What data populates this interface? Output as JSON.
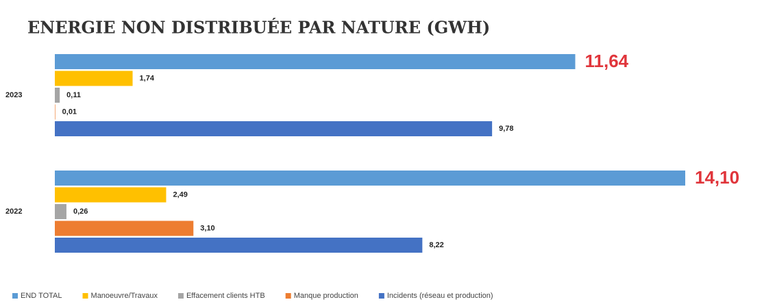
{
  "chart_data": {
    "type": "hbar",
    "title": "ENERGIE NON DISTRIBUÉE PAR NATURE (GWH)",
    "categories": [
      "2023",
      "2022"
    ],
    "series": [
      {
        "name": "END TOTAL",
        "color": "#5b9bd5",
        "label_color": "#e0353b",
        "values": [
          11.64,
          14.1
        ],
        "value_labels": [
          "11,64",
          "14,10"
        ]
      },
      {
        "name": "Manoeuvre/Travaux",
        "color": "#ffc000",
        "label_color": "#222222",
        "values": [
          1.74,
          2.49
        ],
        "value_labels": [
          "1,74",
          "2,49"
        ]
      },
      {
        "name": "Effacement clients HTB",
        "color": "#a5a5a5",
        "label_color": "#222222",
        "values": [
          0.11,
          0.26
        ],
        "value_labels": [
          "0,11",
          "0,26"
        ]
      },
      {
        "name": "Manque production",
        "color": "#ed7d31",
        "label_color": "#222222",
        "values": [
          0.01,
          3.1
        ],
        "value_labels": [
          "0,01",
          "3,10"
        ]
      },
      {
        "name": "Incidents (réseau et production)",
        "color": "#4472c4",
        "label_color": "#222222",
        "values": [
          9.78,
          8.22
        ],
        "value_labels": [
          "9,78",
          "8,22"
        ]
      }
    ],
    "legend": "bottom"
  }
}
